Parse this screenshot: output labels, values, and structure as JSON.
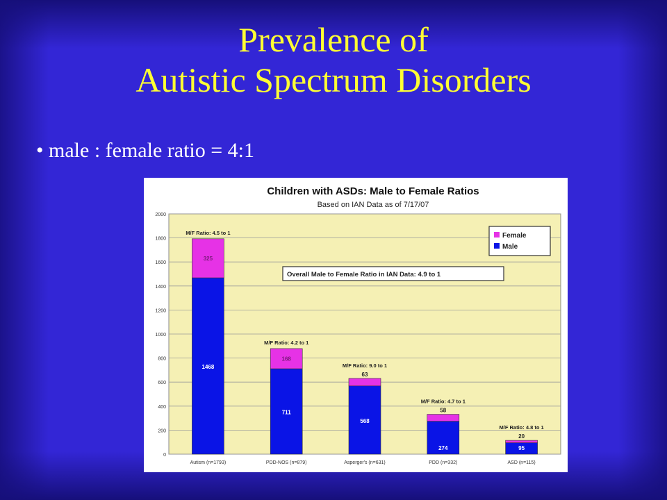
{
  "slide": {
    "title_line1": "Prevalence of",
    "title_line2": "Autistic Spectrum Disorders",
    "bullet_symbol": "•",
    "bullet_text": "male : female ratio = 4:1"
  },
  "colors": {
    "slide_background": "#3326d6",
    "title": "#ffff33",
    "plot_background": "#f5f0b4",
    "male": "#0a14e6",
    "female": "#e632e6"
  },
  "chart_data": {
    "type": "bar",
    "stacked": true,
    "title": "Children with ASDs: Male to Female Ratios",
    "subtitle": "Based on IAN Data as of 7/17/07",
    "xlabel": "",
    "ylabel": "",
    "ylim": [
      0,
      2000
    ],
    "yticks": [
      0,
      200,
      400,
      600,
      800,
      1000,
      1200,
      1400,
      1600,
      1800,
      2000
    ],
    "grid": true,
    "legend": {
      "position": "top-right",
      "entries": [
        "Female",
        "Male"
      ]
    },
    "categories": [
      "Autism (n=1793)",
      "PDD-NOS (n=879)",
      "Asperger's (n=631)",
      "PDD (n=332)",
      "ASD (n=115)"
    ],
    "series": [
      {
        "name": "Male",
        "values": [
          1468,
          711,
          568,
          274,
          95
        ]
      },
      {
        "name": "Female",
        "values": [
          325,
          168,
          63,
          58,
          20
        ]
      }
    ],
    "ratio_labels": [
      "M/F Ratio: 4.5 to 1",
      "M/F Ratio: 4.2 to 1",
      "M/F Ratio: 9.0 to 1",
      "M/F Ratio: 4.7 to 1",
      "M/F Ratio: 4.8 to 1"
    ],
    "annotation": "Overall Male to Female Ratio in IAN Data: 4.9 to 1"
  }
}
